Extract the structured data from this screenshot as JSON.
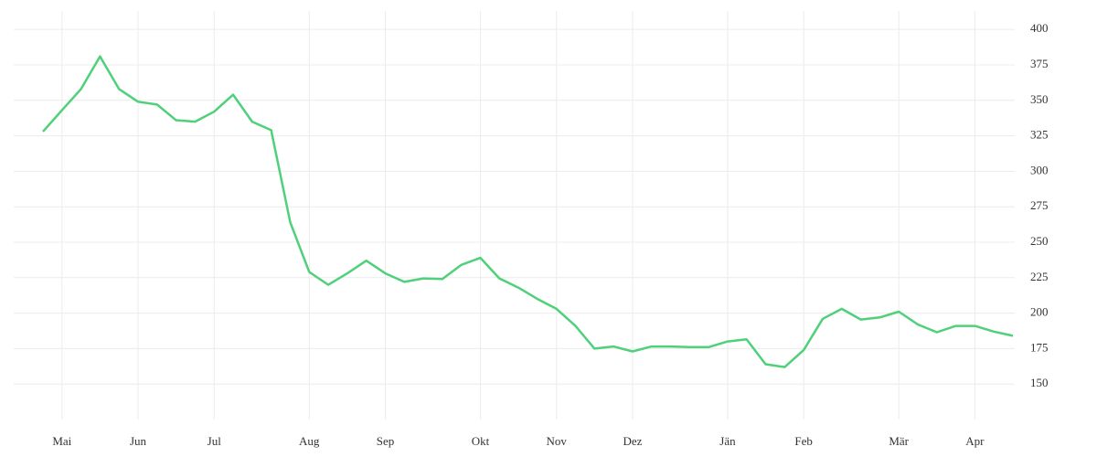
{
  "chart_data": {
    "type": "line",
    "categories": [
      null,
      "Mai",
      null,
      null,
      null,
      "Jun",
      null,
      null,
      null,
      "Jul",
      null,
      null,
      null,
      null,
      "Aug",
      null,
      null,
      null,
      "Sep",
      null,
      null,
      null,
      null,
      "Okt",
      null,
      null,
      null,
      "Nov",
      null,
      null,
      null,
      "Dez",
      null,
      null,
      null,
      null,
      "Jän",
      null,
      null,
      null,
      "Feb",
      null,
      null,
      null,
      null,
      "Mär",
      null,
      null,
      null,
      "Apr",
      null,
      null
    ],
    "series": [
      {
        "color": "#4fd07a",
        "values": [
          328,
          343,
          358,
          381,
          358,
          349,
          347,
          336,
          335,
          342,
          354,
          335,
          329,
          264,
          229,
          220,
          228,
          237,
          228,
          222,
          224.5,
          224,
          234,
          239,
          224.5,
          218,
          210,
          203,
          191,
          175,
          176.5,
          173,
          176.5,
          176.5,
          176,
          176,
          180,
          181.5,
          164,
          162,
          174,
          196,
          203,
          195.5,
          197,
          201,
          192,
          186.5,
          191,
          191,
          187,
          184
        ]
      }
    ],
    "ylim": [
      125,
      413
    ],
    "yticks": [
      150,
      175,
      200,
      225,
      250,
      275,
      300,
      325,
      350,
      375,
      400
    ],
    "grid": true
  }
}
